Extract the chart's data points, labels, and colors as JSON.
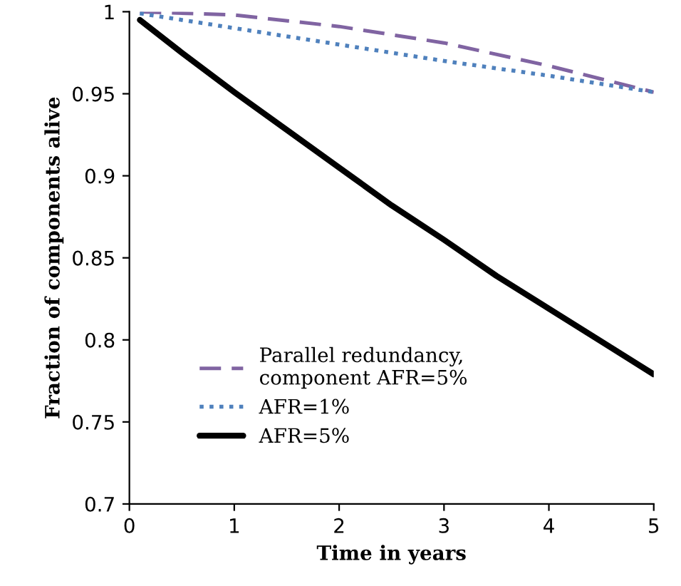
{
  "chart_data": {
    "type": "line",
    "xlabel": "Time in years",
    "ylabel": "Fraction of components alive",
    "xlim": [
      0,
      5
    ],
    "ylim": [
      0.7,
      1
    ],
    "xticks": [
      0,
      1,
      2,
      3,
      4,
      5
    ],
    "yticks": [
      0.7,
      0.75,
      0.8,
      0.85,
      0.9,
      0.95,
      1
    ],
    "grid": false,
    "legend": "lower left",
    "series": [
      {
        "name": "Parallel redundancy,\ncomponent AFR=5%",
        "color": "#8064a2",
        "line_style": "dashed",
        "x": [
          0.1,
          1,
          2,
          3,
          4,
          5
        ],
        "values": [
          1.0,
          0.998,
          0.991,
          0.981,
          0.967,
          0.951
        ]
      },
      {
        "name": "AFR=1%",
        "color": "#4f81bd",
        "line_style": "dotted",
        "x": [
          0.1,
          1,
          2,
          3,
          4,
          5
        ],
        "values": [
          0.999,
          0.99,
          0.98,
          0.97,
          0.961,
          0.951
        ]
      },
      {
        "name": "AFR=5%",
        "color": "#000000",
        "line_style": "solid",
        "x": [
          0.1,
          0.5,
          1,
          1.5,
          2,
          2.5,
          3,
          3.5,
          4,
          4.5,
          5
        ],
        "values": [
          0.995,
          0.975,
          0.951,
          0.928,
          0.905,
          0.882,
          0.861,
          0.839,
          0.819,
          0.799,
          0.779
        ]
      }
    ]
  }
}
